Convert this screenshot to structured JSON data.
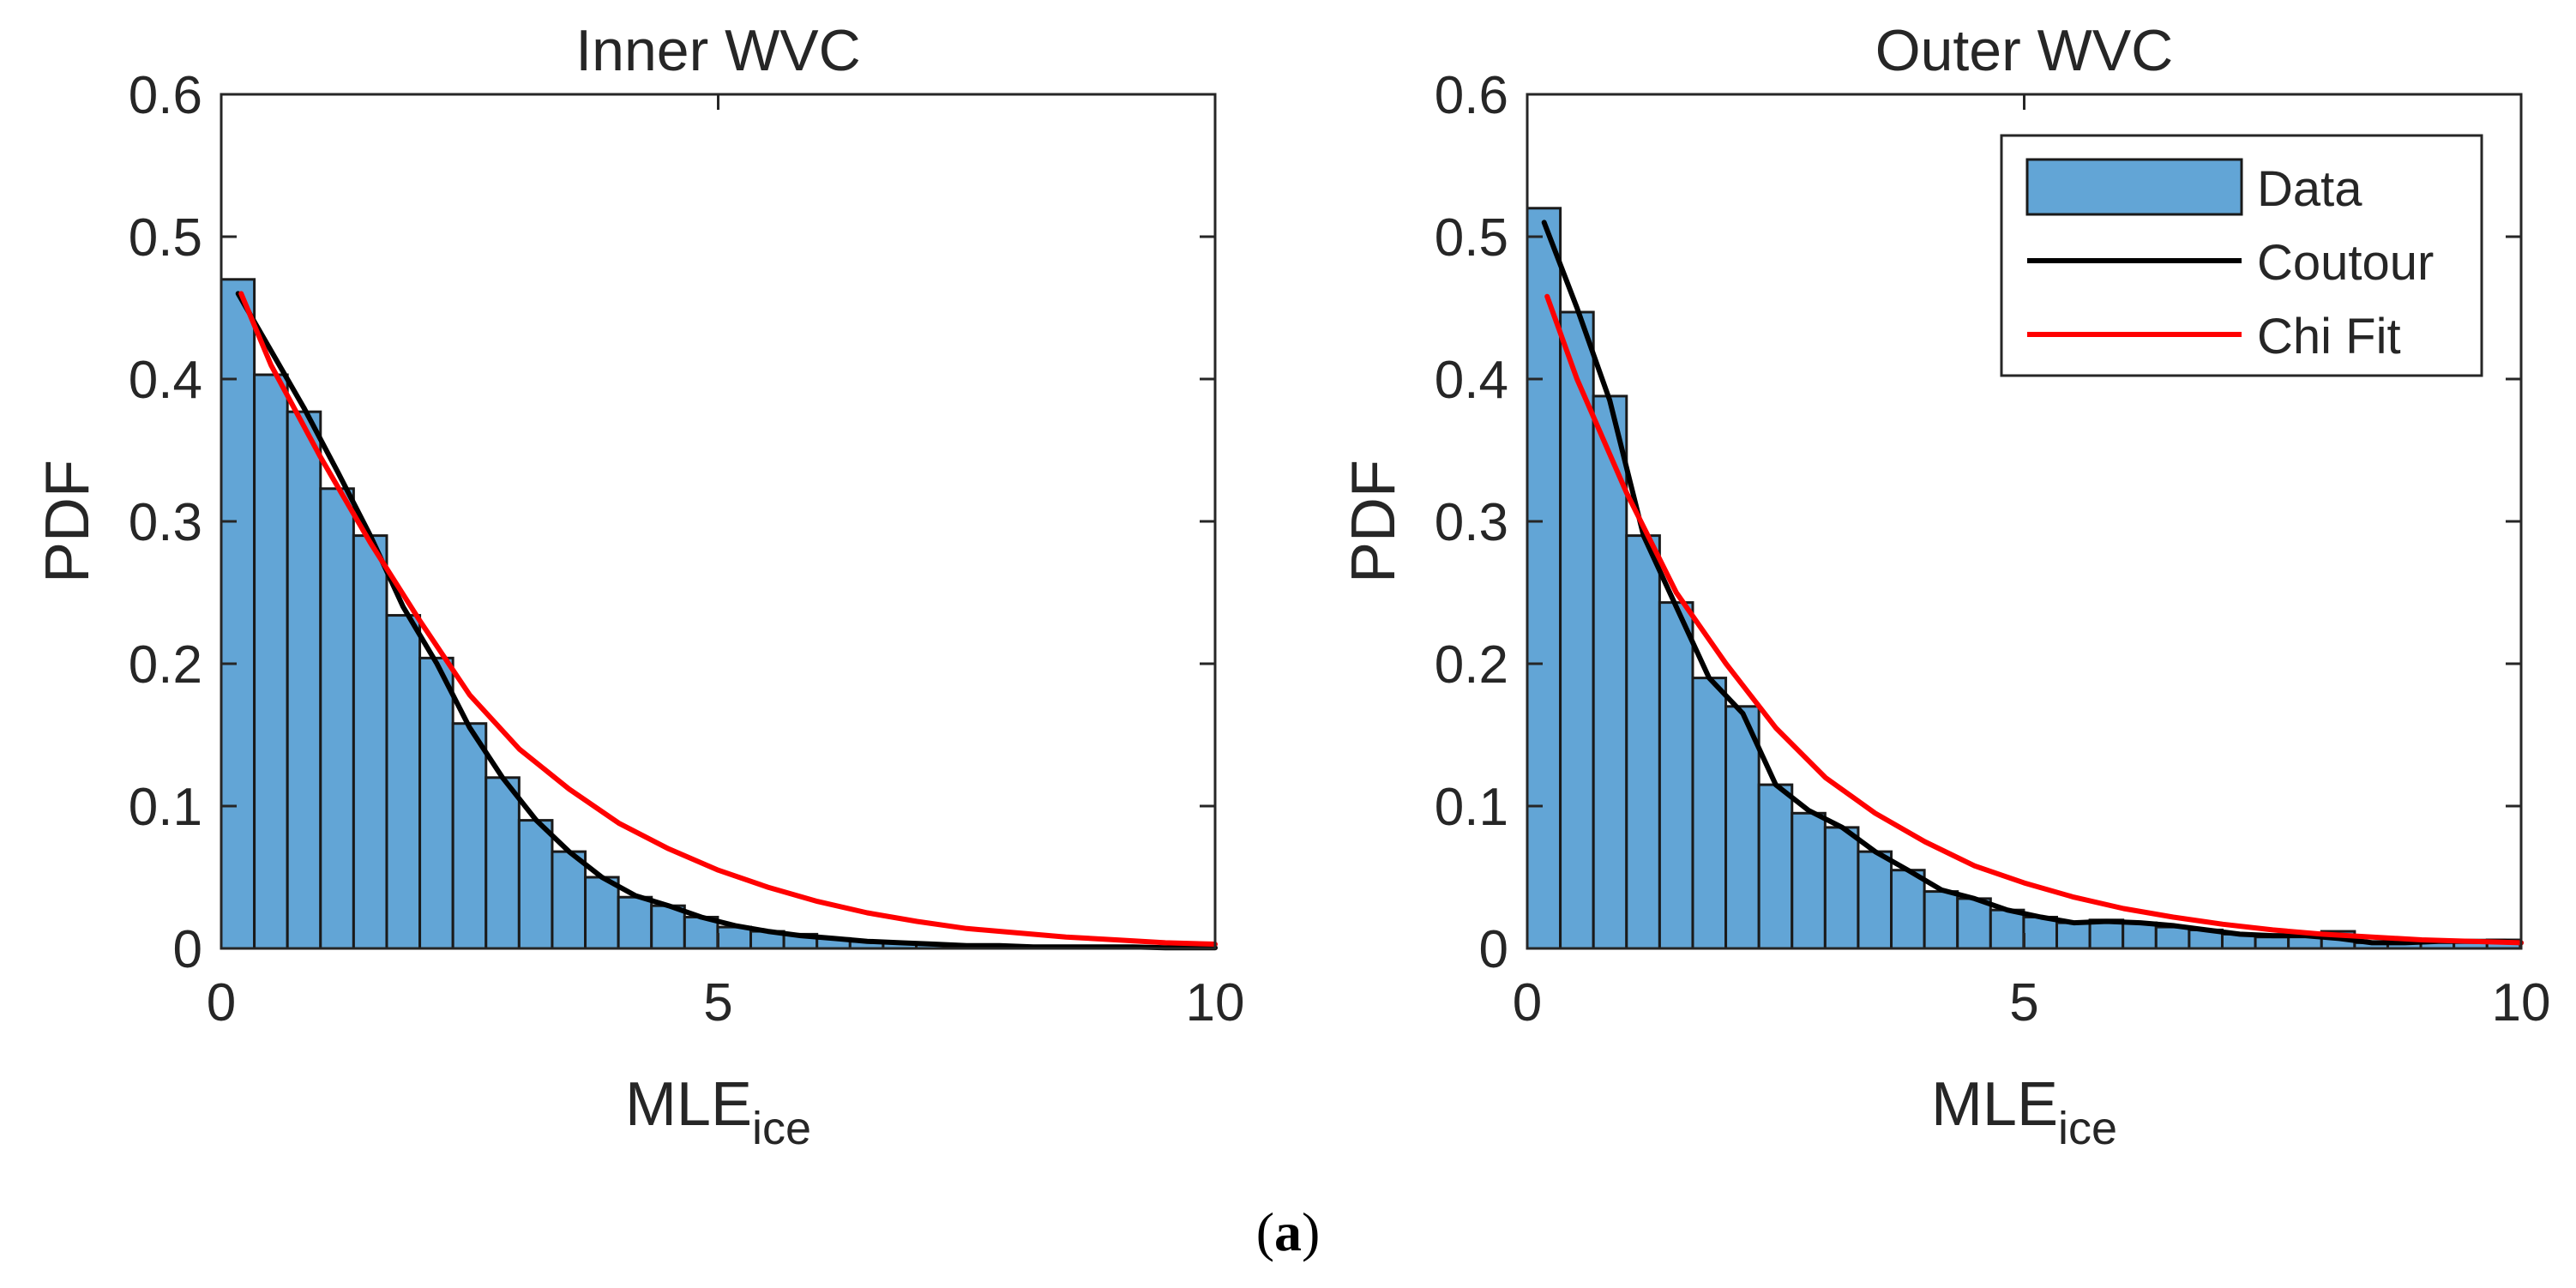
{
  "caption": {
    "open": "(",
    "label": "a",
    "close": ")"
  },
  "colors": {
    "bar": "#62a5d6",
    "bar_edge": "#1a1a1a",
    "contour": "#000000",
    "chi_fit": "#ff0000",
    "axes": "#262626"
  },
  "chart_data": [
    {
      "type": "bar",
      "title": "Inner WVC",
      "xlabel": "MLE",
      "xlabel_sub": "ice",
      "ylabel": "PDF",
      "xlim": [
        0,
        10
      ],
      "ylim": [
        0,
        0.6
      ],
      "xticks": [
        "0",
        "5",
        "10"
      ],
      "yticks": [
        "0",
        "0.1",
        "0.2",
        "0.3",
        "0.4",
        "0.5",
        "0.6"
      ],
      "bin_edges_start": 0,
      "bin_width": 0.333,
      "values": [
        0.47,
        0.403,
        0.377,
        0.323,
        0.29,
        0.234,
        0.204,
        0.158,
        0.12,
        0.09,
        0.068,
        0.05,
        0.036,
        0.03,
        0.022,
        0.015,
        0.012,
        0.01,
        0.007,
        0.005,
        0.004,
        0.003,
        0.002,
        0.002,
        0.001,
        0.001,
        0.001,
        0.001,
        0.0005,
        0.0005
      ],
      "series": [
        {
          "name": "Coutour",
          "x": [
            0.17,
            0.5,
            0.83,
            1.17,
            1.5,
            1.83,
            2.17,
            2.5,
            2.83,
            3.17,
            3.5,
            3.83,
            4.17,
            4.5,
            4.83,
            5.17,
            5.5,
            5.83,
            6.17,
            6.5,
            6.83,
            7.17,
            7.5,
            7.83,
            8.17,
            8.5,
            8.83,
            9.17,
            9.5,
            9.83,
            10
          ],
          "y": [
            0.46,
            0.42,
            0.38,
            0.335,
            0.29,
            0.24,
            0.2,
            0.155,
            0.12,
            0.09,
            0.068,
            0.05,
            0.037,
            0.03,
            0.022,
            0.016,
            0.012,
            0.009,
            0.007,
            0.005,
            0.004,
            0.003,
            0.002,
            0.002,
            0.001,
            0.001,
            0.001,
            0.001,
            0.0005,
            0.0005,
            0.0005
          ]
        },
        {
          "name": "Chi Fit",
          "x": [
            0.2,
            0.5,
            1,
            1.5,
            2,
            2.5,
            3,
            3.5,
            4,
            4.5,
            5,
            5.5,
            6,
            6.5,
            7,
            7.5,
            8,
            8.5,
            9,
            9.5,
            10
          ],
          "y": [
            0.46,
            0.41,
            0.345,
            0.285,
            0.23,
            0.178,
            0.14,
            0.112,
            0.088,
            0.07,
            0.055,
            0.043,
            0.033,
            0.025,
            0.019,
            0.014,
            0.011,
            0.008,
            0.006,
            0.004,
            0.003
          ]
        }
      ]
    },
    {
      "type": "bar",
      "title": "Outer WVC",
      "xlabel": "MLE",
      "xlabel_sub": "ice",
      "ylabel": "PDF",
      "xlim": [
        0,
        10
      ],
      "ylim": [
        0,
        0.6
      ],
      "xticks": [
        "0",
        "5",
        "10"
      ],
      "yticks": [
        "0",
        "0.1",
        "0.2",
        "0.3",
        "0.4",
        "0.5",
        "0.6"
      ],
      "legend": {
        "position": "top-right",
        "entries": [
          "Data",
          "Coutour",
          "Chi Fit"
        ]
      },
      "bin_edges_start": 0,
      "bin_width": 0.333,
      "values": [
        0.52,
        0.447,
        0.388,
        0.29,
        0.243,
        0.19,
        0.17,
        0.115,
        0.095,
        0.085,
        0.068,
        0.055,
        0.04,
        0.035,
        0.027,
        0.022,
        0.018,
        0.02,
        0.018,
        0.015,
        0.013,
        0.01,
        0.008,
        0.01,
        0.012,
        0.004,
        0.004,
        0.005,
        0.005,
        0.006
      ],
      "series": [
        {
          "name": "Coutour",
          "x": [
            0.17,
            0.5,
            0.83,
            1.17,
            1.5,
            1.83,
            2.17,
            2.5,
            2.83,
            3.17,
            3.5,
            3.83,
            4.17,
            4.5,
            4.83,
            5.17,
            5.5,
            5.83,
            6.17,
            6.5,
            6.83,
            7.17,
            7.5,
            7.83,
            8.17,
            8.5,
            8.83,
            9.17,
            9.5,
            9.83,
            10
          ],
          "y": [
            0.51,
            0.45,
            0.385,
            0.29,
            0.24,
            0.19,
            0.165,
            0.115,
            0.097,
            0.085,
            0.068,
            0.055,
            0.041,
            0.035,
            0.027,
            0.022,
            0.018,
            0.019,
            0.018,
            0.016,
            0.013,
            0.01,
            0.009,
            0.009,
            0.007,
            0.004,
            0.004,
            0.005,
            0.005,
            0.005,
            0.004
          ]
        },
        {
          "name": "Chi Fit",
          "x": [
            0.2,
            0.5,
            1,
            1.5,
            2,
            2.5,
            3,
            3.5,
            4,
            4.5,
            5,
            5.5,
            6,
            6.5,
            7,
            7.5,
            8,
            8.5,
            9,
            9.5,
            10
          ],
          "y": [
            0.458,
            0.4,
            0.32,
            0.25,
            0.2,
            0.155,
            0.12,
            0.095,
            0.075,
            0.058,
            0.046,
            0.036,
            0.028,
            0.022,
            0.017,
            0.013,
            0.01,
            0.008,
            0.006,
            0.005,
            0.004
          ]
        }
      ]
    }
  ]
}
